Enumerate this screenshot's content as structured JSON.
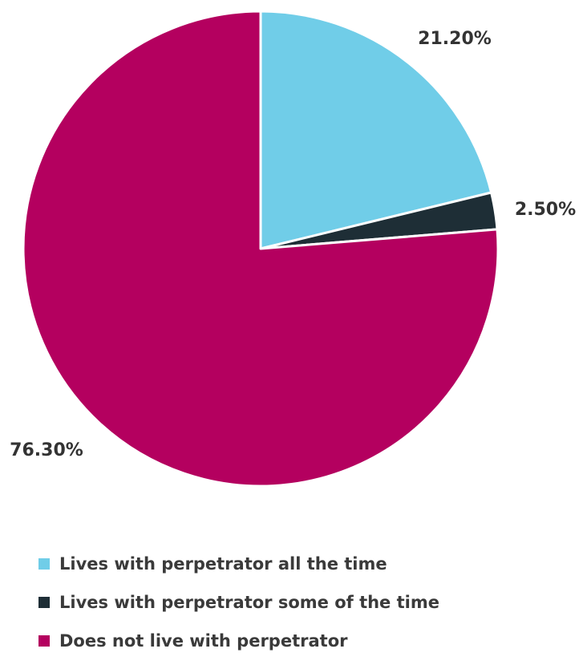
{
  "chart_data": {
    "type": "pie",
    "title": "",
    "slices": [
      {
        "label": "Lives with perpetrator all the time",
        "value": 21.2,
        "value_label": "21.20%",
        "color": "#70cde8"
      },
      {
        "label": "Lives with perpetrator some of the time",
        "value": 2.5,
        "value_label": "2.50%",
        "color": "#1e2e36"
      },
      {
        "label": "Does not live with perpetrator",
        "value": 76.3,
        "value_label": "76.30%",
        "color": "#b4005f"
      }
    ],
    "start_angle": "12 o'clock",
    "direction": "clockwise",
    "legend_position": "bottom-left",
    "slice_border_color": "#ffffff"
  }
}
